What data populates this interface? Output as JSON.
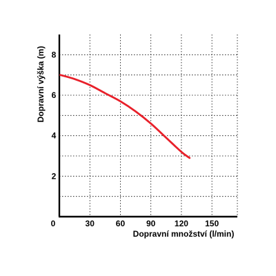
{
  "chart_data": {
    "type": "line",
    "title": "",
    "xlabel": "Dopravní množství (l/min)",
    "ylabel": "Dopravní výška (m)",
    "xlim": [
      0,
      175
    ],
    "ylim": [
      0,
      9
    ],
    "x_ticks": [
      {
        "value": 0,
        "label": "0"
      },
      {
        "value": 30,
        "label": "30"
      },
      {
        "value": 60,
        "label": "60"
      },
      {
        "value": 90,
        "label": "90"
      },
      {
        "value": 120,
        "label": "120"
      },
      {
        "value": 150,
        "label": "150"
      }
    ],
    "y_ticks": [
      {
        "value": 2,
        "label": "2"
      },
      {
        "value": 4,
        "label": "4"
      },
      {
        "value": 6,
        "label": "6"
      },
      {
        "value": 8,
        "label": "8"
      }
    ],
    "grid_x": [
      30,
      60,
      90,
      120,
      150,
      175
    ],
    "grid_y": [
      1,
      2,
      3,
      4,
      5,
      6,
      7,
      8
    ],
    "grid": true,
    "series": [
      {
        "color": "#e8202a",
        "x": [
          1,
          15,
          30,
          45,
          60,
          75,
          90,
          105,
          120,
          128
        ],
        "y": [
          7.0,
          6.8,
          6.5,
          6.1,
          5.7,
          5.2,
          4.6,
          3.9,
          3.2,
          2.9
        ]
      }
    ]
  }
}
